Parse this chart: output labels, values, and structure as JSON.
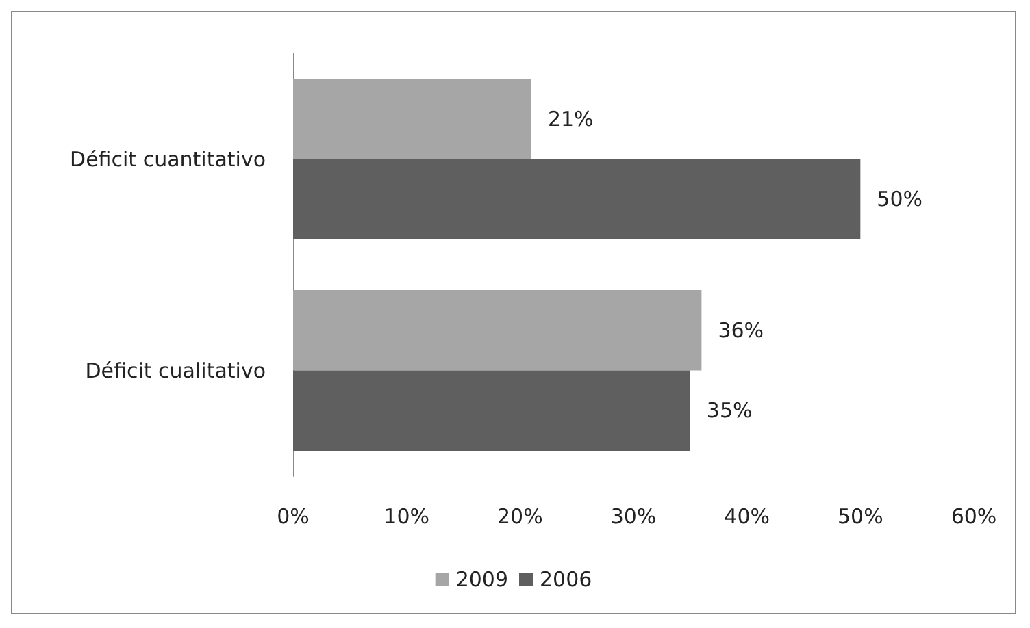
{
  "chart_data": {
    "type": "bar",
    "orientation": "horizontal",
    "categories": [
      "Déficit cuantitativo",
      "Déficit cualitativo"
    ],
    "series": [
      {
        "name": "2009",
        "color": "#a6a6a6",
        "values": [
          21,
          36
        ],
        "value_labels": [
          "21%",
          "36%"
        ]
      },
      {
        "name": "2006",
        "color": "#5f5f5f",
        "values": [
          50,
          35
        ],
        "value_labels": [
          "50%",
          "35%"
        ]
      }
    ],
    "xlim": [
      0,
      60
    ],
    "xticks": [
      {
        "value": 0,
        "label": "0%"
      },
      {
        "value": 10,
        "label": "10%"
      },
      {
        "value": 20,
        "label": "20%"
      },
      {
        "value": 30,
        "label": "30%"
      },
      {
        "value": 40,
        "label": "40%"
      },
      {
        "value": 50,
        "label": "50%"
      },
      {
        "value": 60,
        "label": "60%"
      }
    ],
    "grid": false,
    "legend": "bottom"
  }
}
